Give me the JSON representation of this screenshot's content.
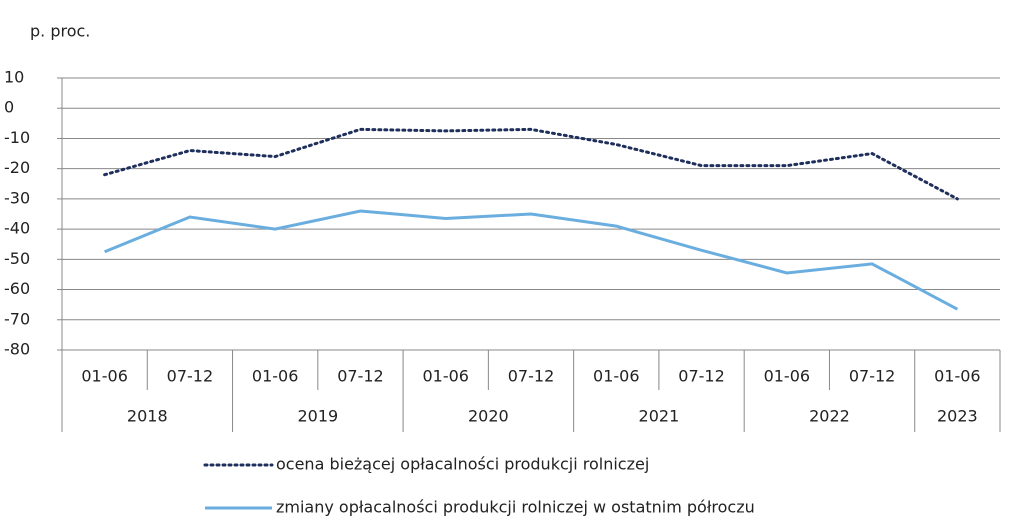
{
  "chart_data": {
    "type": "line",
    "y_label": "p. proc.",
    "categories": [
      "01-06",
      "07-12",
      "01-06",
      "07-12",
      "01-06",
      "07-12",
      "01-06",
      "07-12",
      "01-06",
      "07-12",
      "01-06"
    ],
    "years": [
      "2018",
      null,
      "2019",
      null,
      "2020",
      null,
      "2021",
      null,
      "2022",
      null,
      "2023"
    ],
    "series": [
      {
        "name": "ocena bieżącej opłacalności produkcji rolniczej",
        "color": "#1f2f5c",
        "style": "dotted",
        "values": [
          -22,
          -14,
          -16,
          -7,
          -7.5,
          -7,
          -12,
          -19,
          -19,
          -15,
          -30
        ]
      },
      {
        "name": "zmiany opłacalności produkcji rolniczej w ostatnim półroczu",
        "color": "#6aaee0",
        "style": "solid",
        "values": [
          -47.5,
          -36,
          -40,
          -34,
          -36.5,
          -35,
          -39,
          -47,
          -54.5,
          -51.5,
          -66.5
        ]
      }
    ],
    "ylim": [
      -80,
      10
    ],
    "yticks": [
      -80,
      -70,
      -60,
      -50,
      -40,
      -30,
      -20,
      -10,
      0,
      10
    ],
    "grid": true
  }
}
